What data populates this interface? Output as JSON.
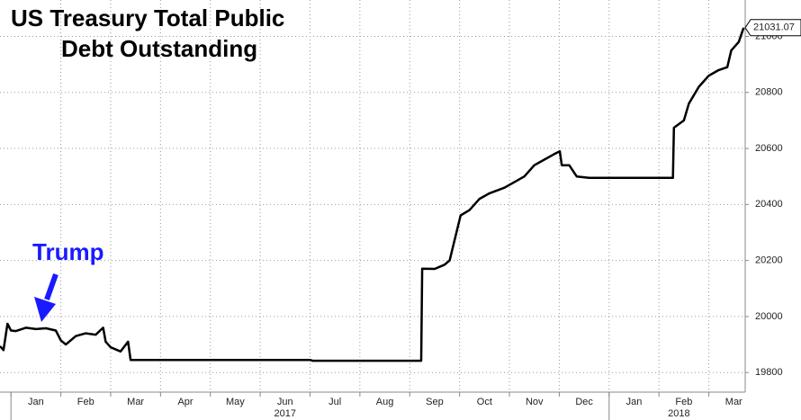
{
  "chart_data": {
    "type": "line",
    "title": [
      "US Treasury Total Public",
      "Debt Outstanding"
    ],
    "annotation": "Trump",
    "x": [
      -0.22,
      -0.15,
      -0.07,
      0.0,
      0.1,
      0.3,
      0.5,
      0.7,
      0.9,
      1.0,
      1.1,
      1.3,
      1.5,
      1.7,
      1.85,
      1.9,
      2.0,
      2.2,
      2.35,
      2.4,
      6.0,
      6.05,
      8.0,
      8.23,
      8.25,
      8.5,
      8.7,
      8.8,
      9.02,
      9.2,
      9.4,
      9.6,
      9.9,
      10.1,
      10.3,
      10.5,
      10.7,
      10.9,
      11.01,
      11.05,
      11.2,
      11.35,
      11.6,
      12.0,
      12.5,
      13.28,
      13.3,
      13.5,
      13.6,
      13.8,
      14.0,
      14.2,
      14.37,
      14.45,
      14.6,
      14.7
    ],
    "series": [
      {
        "name": "Total Public Debt Outstanding",
        "color": "#000000",
        "values": [
          19894,
          19880,
          19974,
          19950,
          19948,
          19960,
          19955,
          19958,
          19950,
          19915,
          19900,
          19930,
          19940,
          19935,
          19960,
          19910,
          19890,
          19875,
          19910,
          19845,
          19845,
          19842,
          19842,
          19842,
          20171,
          20170,
          20185,
          20200,
          20361,
          20380,
          20420,
          20440,
          20460,
          20480,
          20500,
          20540,
          20560,
          20580,
          20590,
          20540,
          20540,
          20500,
          20495,
          20495,
          20495,
          20495,
          20674,
          20700,
          20760,
          20820,
          20860,
          20880,
          20890,
          20950,
          20980,
          21031.07
        ]
      }
    ],
    "xlim": [
      -0.22,
      14.73
    ],
    "ylim": [
      19730,
      21130
    ],
    "yticks": [
      19800,
      20000,
      20200,
      20400,
      20600,
      20800,
      21000
    ],
    "xticks": [
      {
        "value": 0.5,
        "label": "Jan"
      },
      {
        "value": 1.5,
        "label": "Feb"
      },
      {
        "value": 2.5,
        "label": "Mar"
      },
      {
        "value": 3.5,
        "label": "Apr"
      },
      {
        "value": 4.5,
        "label": "May"
      },
      {
        "value": 5.5,
        "label": "Jun"
      },
      {
        "value": 6.5,
        "label": "Jul"
      },
      {
        "value": 7.5,
        "label": "Aug"
      },
      {
        "value": 8.5,
        "label": "Sep"
      },
      {
        "value": 9.5,
        "label": "Oct"
      },
      {
        "value": 10.5,
        "label": "Nov"
      },
      {
        "value": 11.5,
        "label": "Dec"
      },
      {
        "value": 12.5,
        "label": "Jan"
      },
      {
        "value": 13.5,
        "label": "Feb"
      },
      {
        "value": 14.5,
        "label": "Mar"
      }
    ],
    "year_labels": [
      {
        "value": 5.5,
        "label": "2017"
      },
      {
        "value": 13.4,
        "label": "2018"
      }
    ],
    "grid": true
  }
}
